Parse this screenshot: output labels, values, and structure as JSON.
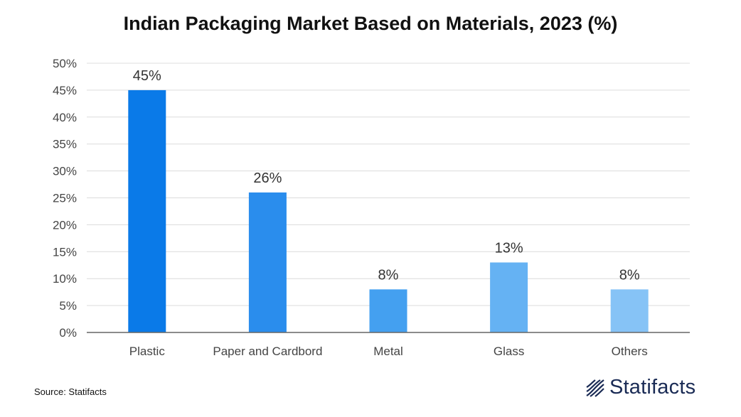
{
  "chart_data": {
    "type": "bar",
    "title": "Indian Packaging Market Based on Materials, 2023 (%)",
    "categories": [
      "Plastic",
      "Paper and Cardbord",
      "Metal",
      "Glass",
      "Others"
    ],
    "values": [
      45,
      26,
      8,
      13,
      8
    ],
    "data_labels": [
      "45%",
      "26%",
      "8%",
      "13%",
      "8%"
    ],
    "ylim": [
      0,
      50
    ],
    "y_ticks": [
      0,
      5,
      10,
      15,
      20,
      25,
      30,
      35,
      40,
      45,
      50
    ],
    "y_tick_labels": [
      "0%",
      "5%",
      "10%",
      "15%",
      "20%",
      "25%",
      "30%",
      "35%",
      "40%",
      "45%",
      "50%"
    ],
    "grid": true,
    "bar_colors": [
      "#0a7ae8",
      "#2a8ded",
      "#44a0f0",
      "#65b2f3",
      "#86c3f6"
    ]
  },
  "source": "Source: Statifacts",
  "brand": {
    "name": "Statifacts",
    "logo_icon": "statifacts-logo-icon",
    "color": "#1a2b55"
  }
}
